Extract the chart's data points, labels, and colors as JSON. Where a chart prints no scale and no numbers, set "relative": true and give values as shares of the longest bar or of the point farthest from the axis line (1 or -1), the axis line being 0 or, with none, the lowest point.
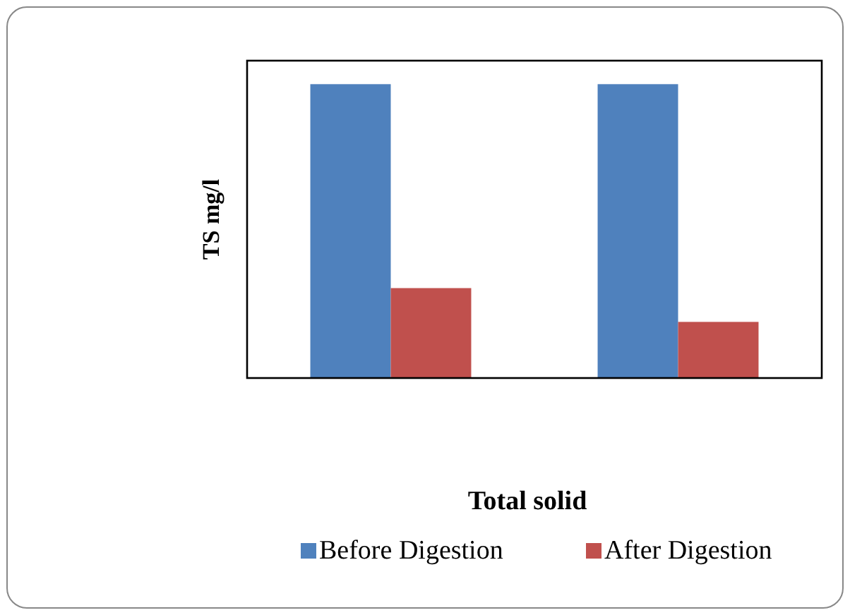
{
  "chart_data": {
    "type": "bar",
    "relative": true,
    "xlabel": "Total solid",
    "ylabel": "TS mg/l",
    "categories": [
      null,
      null
    ],
    "series": [
      {
        "name": "Before Digestion",
        "color": "#4f81bd",
        "values": [
          1,
          1
        ]
      },
      {
        "name": "After Digestion",
        "color": "#c0504d",
        "values": [
          0.306,
          0.191
        ]
      }
    ],
    "legend": "bottom"
  }
}
